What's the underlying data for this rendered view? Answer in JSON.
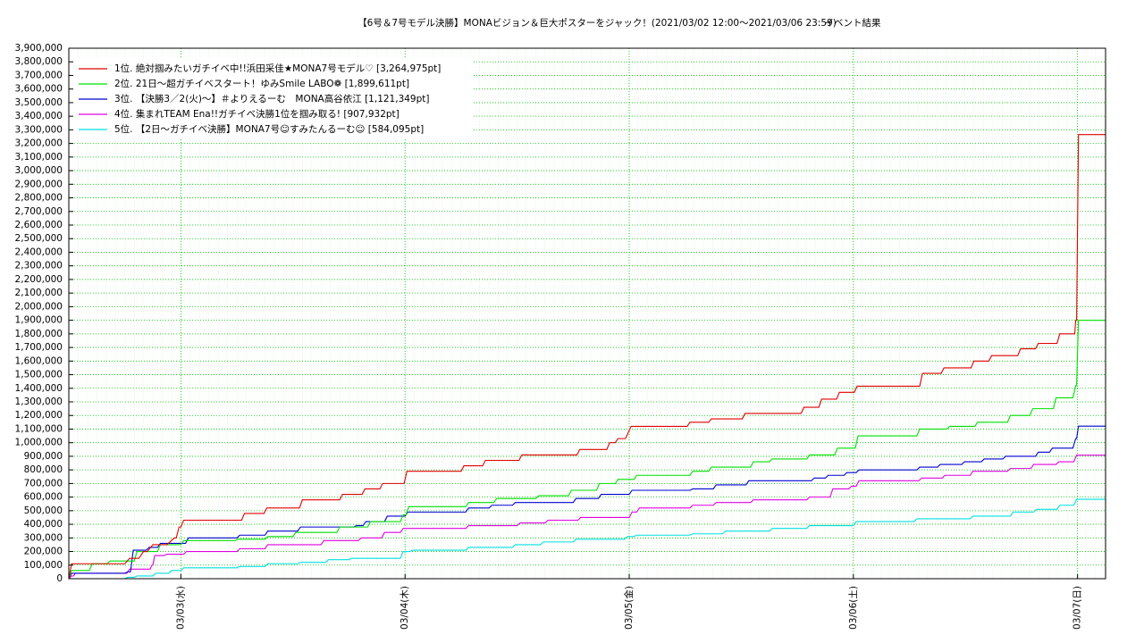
{
  "chart_data": {
    "type": "line",
    "title": "【6号＆7号モデル決勝】MONAビジョン＆巨大ポスターをジャック！(2021/03/02 12:00〜2021/03/06 23:59)",
    "subtitle": "イベント結果",
    "xlim": [
      0,
      111
    ],
    "xticks": [
      {
        "value": 12,
        "label": "03/03(水)"
      },
      {
        "value": 36,
        "label": "03/04(木)"
      },
      {
        "value": 60,
        "label": "03/05(金)"
      },
      {
        "value": 84,
        "label": "03/06(土)"
      },
      {
        "value": 108,
        "label": "03/07(日)"
      }
    ],
    "ylim": [
      0,
      3900000
    ],
    "yticks": [
      0,
      {
        "value": 100000,
        "label": "100,000"
      },
      {
        "value": 200000,
        "label": "200,000"
      },
      {
        "value": 300000,
        "label": "300,000"
      },
      {
        "value": 400000,
        "label": "400,000"
      },
      {
        "value": 500000,
        "label": "500,000"
      },
      {
        "value": 600000,
        "label": "600,000"
      },
      {
        "value": 700000,
        "label": "700,000"
      },
      {
        "value": 800000,
        "label": "800,000"
      },
      {
        "value": 900000,
        "label": "900,000"
      },
      {
        "value": 1000000,
        "label": "1,000,000"
      },
      {
        "value": 1100000,
        "label": "1,100,000"
      },
      {
        "value": 1200000,
        "label": "1,200,000"
      },
      {
        "value": 1300000,
        "label": "1,300,000"
      },
      {
        "value": 1400000,
        "label": "1,400,000"
      },
      {
        "value": 1500000,
        "label": "1,500,000"
      },
      {
        "value": 1600000,
        "label": "1,600,000"
      },
      {
        "value": 1700000,
        "label": "1,700,000"
      },
      {
        "value": 1800000,
        "label": "1,800,000"
      },
      {
        "value": 1900000,
        "label": "1,900,000"
      },
      {
        "value": 2000000,
        "label": "2,000,000"
      },
      {
        "value": 2100000,
        "label": "2,100,000"
      },
      {
        "value": 2200000,
        "label": "2,200,000"
      },
      {
        "value": 2300000,
        "label": "2,300,000"
      },
      {
        "value": 2400000,
        "label": "2,400,000"
      },
      {
        "value": 2500000,
        "label": "2,500,000"
      },
      {
        "value": 2600000,
        "label": "2,600,000"
      },
      {
        "value": 2700000,
        "label": "2,700,000"
      },
      {
        "value": 2800000,
        "label": "2,800,000"
      },
      {
        "value": 2900000,
        "label": "2,900,000"
      },
      {
        "value": 3000000,
        "label": "3,000,000"
      },
      {
        "value": 3100000,
        "label": "3,100,000"
      },
      {
        "value": 3200000,
        "label": "3,200,000"
      },
      {
        "value": 3300000,
        "label": "3,300,000"
      },
      {
        "value": 3400000,
        "label": "3,400,000"
      },
      {
        "value": 3500000,
        "label": "3,500,000"
      },
      {
        "value": 3600000,
        "label": "3,600,000"
      },
      {
        "value": 3700000,
        "label": "3,700,000"
      },
      {
        "value": 3800000,
        "label": "3,800,000"
      },
      {
        "value": 3900000,
        "label": "3,900,000"
      }
    ],
    "grid": true,
    "legend": "upper left",
    "series": [
      {
        "name": "1位. 絶対掴みたいガチイベ中!!浜田采佳★MONA7号モデル♡ [3,264,975pt]",
        "color": "#e00000",
        "x": [
          0,
          0.3,
          6,
          6.5,
          7.5,
          8,
          8.4,
          9,
          10.5,
          11.3,
          11.5,
          11.8,
          12,
          12.3,
          18.5,
          18.8,
          20.9,
          21.2,
          24.7,
          25,
          29,
          29.3,
          31.4,
          31.7,
          33.3,
          33.6,
          35.9,
          36.2,
          42,
          42.3,
          44.3,
          44.6,
          48.2,
          48.5,
          54.4,
          54.7,
          57.6,
          57.9,
          58.5,
          58.8,
          59.6,
          60.2,
          66.2,
          66.5,
          68.5,
          68.8,
          72.1,
          72.4,
          78.4,
          78.7,
          80.3,
          80.6,
          82.2,
          82.5,
          84.1,
          84.4,
          91.1,
          91.4,
          93.4,
          93.7,
          96.6,
          96.9,
          98.5,
          98.8,
          101.6,
          101.9,
          103.5,
          103.8,
          105.8,
          106.1,
          107.7,
          107.8,
          107.9,
          108.1,
          111
        ],
        "values": [
          0,
          110000,
          110000,
          150000,
          150000,
          200000,
          200000,
          250000,
          250000,
          300000,
          300000,
          380000,
          380000,
          430000,
          430000,
          480000,
          480000,
          520000,
          520000,
          580000,
          580000,
          620000,
          620000,
          660000,
          660000,
          700000,
          700000,
          790000,
          790000,
          830000,
          830000,
          870000,
          870000,
          910000,
          910000,
          950000,
          950000,
          1000000,
          1000000,
          1030000,
          1030000,
          1120000,
          1120000,
          1150000,
          1150000,
          1175000,
          1175000,
          1215000,
          1215000,
          1260000,
          1260000,
          1320000,
          1320000,
          1370000,
          1370000,
          1415000,
          1415000,
          1510000,
          1510000,
          1550000,
          1550000,
          1600000,
          1600000,
          1640000,
          1640000,
          1690000,
          1690000,
          1730000,
          1730000,
          1800000,
          1800000,
          1900000,
          1900000,
          3264975,
          3264975
        ]
      },
      {
        "name": "2位. 21日〜超ガチイベスタート！ゆみSmile LABO❁ [1,899,611pt]",
        "color": "#00e000",
        "x": [
          0,
          0.3,
          2.2,
          2.5,
          4.1,
          4.4,
          7,
          7.3,
          9.5,
          9.8,
          12,
          12.3,
          17.8,
          18.1,
          21,
          21.3,
          24,
          24.3,
          28.7,
          29,
          32,
          32.3,
          35.5,
          35.8,
          36.1,
          36.4,
          42.5,
          42.8,
          45.5,
          45.8,
          50,
          50.3,
          53.5,
          53.8,
          56.5,
          56.8,
          58.5,
          58.8,
          60.5,
          60.8,
          66.5,
          66.8,
          68.5,
          68.8,
          73,
          73.3,
          75,
          75.3,
          79,
          79.3,
          82,
          82.3,
          84.2,
          84.5,
          90.8,
          91.1,
          94,
          94.3,
          97,
          97.3,
          100.5,
          100.8,
          102.9,
          103.2,
          105.4,
          105.7,
          107.5,
          107.8,
          107.9,
          108.1,
          111
        ],
        "values": [
          0,
          60000,
          60000,
          110000,
          110000,
          130000,
          130000,
          200000,
          200000,
          250000,
          250000,
          280000,
          280000,
          290000,
          290000,
          310000,
          310000,
          340000,
          340000,
          380000,
          380000,
          420000,
          420000,
          470000,
          470000,
          530000,
          530000,
          560000,
          560000,
          590000,
          590000,
          610000,
          610000,
          650000,
          650000,
          700000,
          700000,
          730000,
          730000,
          760000,
          760000,
          790000,
          790000,
          820000,
          820000,
          860000,
          860000,
          880000,
          880000,
          910000,
          910000,
          960000,
          960000,
          1050000,
          1050000,
          1100000,
          1100000,
          1120000,
          1120000,
          1150000,
          1150000,
          1200000,
          1200000,
          1250000,
          1250000,
          1330000,
          1330000,
          1420000,
          1420000,
          1899611,
          1899611
        ]
      },
      {
        "name": "3位. 【決勝3／2(火)〜】＃よりえるーむ　MONA高谷依江 [1,121,349pt]",
        "color": "#0000d0",
        "x": [
          0,
          0.3,
          6,
          6.3,
          6.6,
          6.9,
          8.3,
          8.6,
          9.5,
          9.8,
          12.5,
          12.8,
          18,
          18.3,
          21,
          21.3,
          24.5,
          24.8,
          30.5,
          30.8,
          31.5,
          31.8,
          33.8,
          34.1,
          36,
          36.3,
          42.5,
          42.8,
          45,
          45.3,
          47.5,
          47.8,
          54,
          54.3,
          56.7,
          57,
          60,
          60.3,
          66.5,
          66.8,
          69,
          69.3,
          72.5,
          72.8,
          79.5,
          79.8,
          81,
          81.3,
          83,
          83.3,
          84.3,
          84.6,
          90.8,
          91.1,
          93,
          93.3,
          95.6,
          95.9,
          97.7,
          98,
          100,
          100.3,
          103.5,
          103.8,
          105,
          105.3,
          107.5,
          107.8,
          107.9,
          108.1,
          111
        ],
        "values": [
          0,
          40000,
          40000,
          50000,
          50000,
          210000,
          210000,
          230000,
          230000,
          260000,
          260000,
          300000,
          300000,
          320000,
          320000,
          350000,
          350000,
          380000,
          380000,
          390000,
          390000,
          420000,
          420000,
          460000,
          460000,
          490000,
          490000,
          520000,
          520000,
          540000,
          540000,
          560000,
          560000,
          590000,
          590000,
          620000,
          620000,
          650000,
          650000,
          660000,
          660000,
          690000,
          690000,
          720000,
          720000,
          740000,
          740000,
          760000,
          760000,
          780000,
          780000,
          800000,
          800000,
          820000,
          820000,
          840000,
          840000,
          860000,
          860000,
          880000,
          880000,
          900000,
          900000,
          930000,
          930000,
          960000,
          960000,
          1030000,
          1030000,
          1121349,
          1121349
        ]
      },
      {
        "name": "4位. 集まれTEAM Ena!!ガチイベ決勝1位を掴み取る! [907,932pt]",
        "color": "#e000e0",
        "x": [
          0,
          0.3,
          0.5,
          0.7,
          6.2,
          6.5,
          8.7,
          8.9,
          9,
          9.2,
          10.2,
          10.5,
          12.3,
          12.6,
          18,
          18.3,
          21,
          21.3,
          27,
          27.3,
          31,
          31.3,
          33.5,
          33.8,
          35.5,
          35.8,
          42.5,
          42.8,
          48,
          48.3,
          51,
          51.3,
          54.5,
          54.8,
          60,
          60.3,
          60.8,
          61.1,
          66.5,
          66.8,
          69,
          69.3,
          73,
          73.3,
          79,
          79.3,
          81.5,
          81.8,
          83.5,
          83.8,
          84.3,
          84.6,
          91,
          91.3,
          93.5,
          93.8,
          96.5,
          96.8,
          100.5,
          100.8,
          103,
          103.3,
          105.7,
          106,
          107.6,
          107.9,
          111
        ],
        "values": [
          0,
          20000,
          20000,
          40000,
          40000,
          70000,
          70000,
          100000,
          100000,
          170000,
          170000,
          180000,
          180000,
          200000,
          200000,
          220000,
          220000,
          250000,
          250000,
          280000,
          280000,
          300000,
          300000,
          340000,
          340000,
          370000,
          370000,
          390000,
          390000,
          410000,
          410000,
          430000,
          430000,
          450000,
          450000,
          490000,
          490000,
          520000,
          520000,
          540000,
          540000,
          560000,
          560000,
          580000,
          580000,
          600000,
          600000,
          660000,
          660000,
          680000,
          680000,
          720000,
          720000,
          740000,
          740000,
          760000,
          760000,
          790000,
          790000,
          810000,
          810000,
          840000,
          840000,
          860000,
          860000,
          907932,
          907932
        ]
      },
      {
        "name": "5位. 【2日〜ガチイベ決勝】MONA7号☺すみたんるーむ☺ [584,095pt]",
        "color": "#00e0e0",
        "x": [
          0,
          6,
          6.3,
          7,
          7.3,
          9,
          9.3,
          10.7,
          11,
          12,
          12.3,
          18,
          18.3,
          21,
          21.3,
          24.5,
          24.8,
          27.5,
          27.8,
          30,
          30.3,
          35.5,
          35.8,
          36.5,
          36.8,
          42.5,
          42.8,
          47.5,
          47.8,
          50.5,
          50.8,
          54,
          54.3,
          59.5,
          59.8,
          60.5,
          60.8,
          66.5,
          66.8,
          70,
          70.3,
          75,
          75.3,
          79,
          79.3,
          84,
          84.3,
          90.5,
          90.8,
          96.5,
          96.8,
          100.8,
          101.1,
          103.3,
          103.6,
          105.8,
          106.1,
          107.6,
          107.9,
          111
        ],
        "values": [
          0,
          0,
          10000,
          10000,
          20000,
          20000,
          40000,
          40000,
          60000,
          60000,
          80000,
          80000,
          90000,
          90000,
          110000,
          110000,
          120000,
          120000,
          140000,
          140000,
          150000,
          150000,
          200000,
          200000,
          210000,
          210000,
          230000,
          230000,
          250000,
          250000,
          270000,
          270000,
          290000,
          290000,
          310000,
          310000,
          320000,
          320000,
          330000,
          330000,
          350000,
          350000,
          370000,
          370000,
          390000,
          390000,
          420000,
          420000,
          440000,
          440000,
          460000,
          460000,
          490000,
          490000,
          510000,
          510000,
          540000,
          540000,
          584095,
          584095
        ]
      }
    ]
  }
}
